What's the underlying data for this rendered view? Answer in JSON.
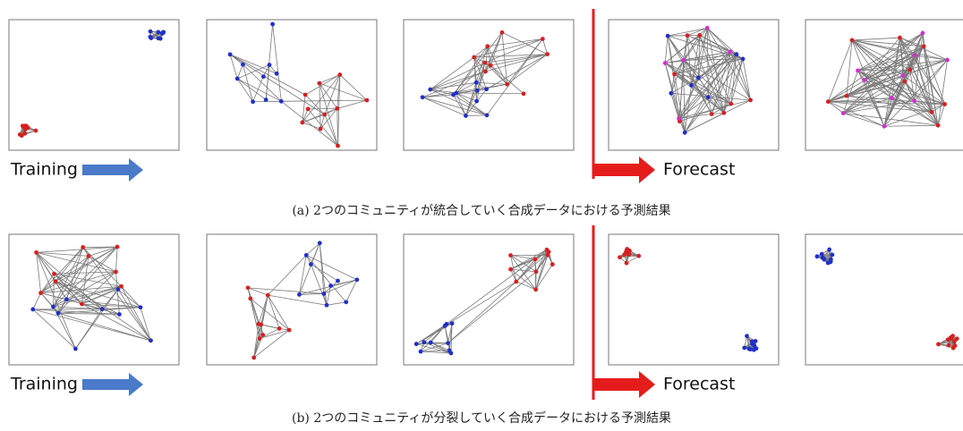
{
  "figure": {
    "rows": [
      {
        "training_label": "Training",
        "forecast_label": "Forecast",
        "caption": "(a)  2つのコミュニティが統合していく合成データにおける予測結果"
      },
      {
        "training_label": "Training",
        "forecast_label": "Forecast",
        "caption": "(b)  2つのコミュニティが分裂していく合成データにおける予測結果"
      }
    ]
  }
}
